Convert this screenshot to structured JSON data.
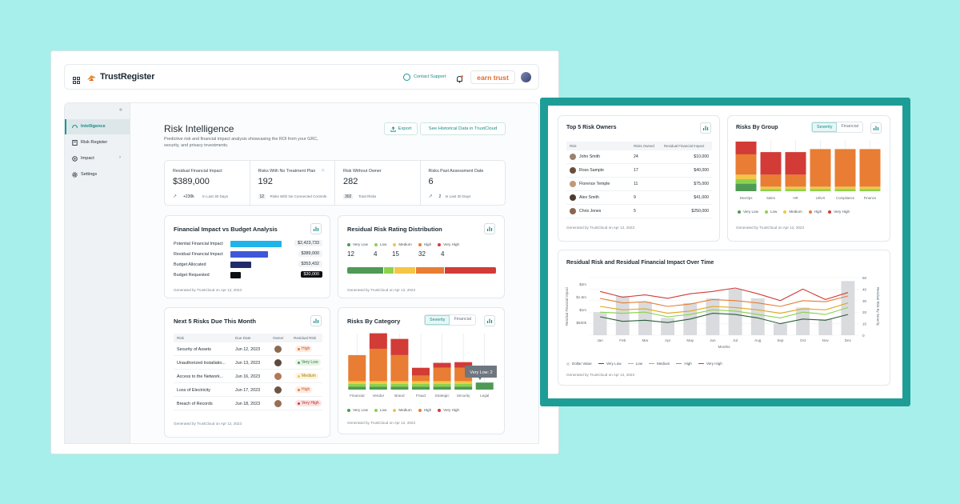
{
  "colors": {
    "teal": "#179a94",
    "veryLow": "#4f9a55",
    "low": "#8bd24f",
    "medium": "#f4c645",
    "high": "#e87d33",
    "veryHigh": "#d23b36"
  },
  "app": {
    "logo": "TrustRegister",
    "contact_support": "Contact Support",
    "earn_trust": "earn trust",
    "collapse": "«"
  },
  "sidebar": {
    "items": [
      {
        "label": "Intelligence",
        "icon": "gauge-icon"
      },
      {
        "label": "Risk Register",
        "icon": "register-icon"
      },
      {
        "label": "Impact",
        "icon": "impact-icon"
      },
      {
        "label": "Settings",
        "icon": "gear-icon"
      }
    ]
  },
  "page": {
    "title": "Risk Intelligence",
    "subtitle_l1": "Predictive risk and financial impact analysis showcasing the ROI from your GRC,",
    "subtitle_l2": "security, and privacy investments.",
    "export": "Export",
    "historical": "See Historical Data in TrustCloud"
  },
  "kpis": [
    {
      "label": "Residual Financial Impact",
      "value": "$389,000",
      "chip": "+230k",
      "note": "In Last 30 Days"
    },
    {
      "label": "Risks With No Treatment Plan",
      "value": "192",
      "chip": "12",
      "note": "Risks With No Connected Controls"
    },
    {
      "label": "Risk Without Owner",
      "value": "282",
      "chip": "302",
      "note": "Total Risks"
    },
    {
      "label": "Risks Past Assessment Date",
      "value": "6",
      "chip": "2",
      "note": "In Last 30 Days"
    }
  ],
  "generated": "Generated by TrustCloud on Apr 12, 2023",
  "fin_impact": {
    "title": "Financial Impact vs Budget Analysis",
    "rows": [
      {
        "label": "Potential Financial Impact",
        "value": "$2,423,733",
        "frac": 1.0,
        "color": "#1fb4ea"
      },
      {
        "label": "Residual Financial Impact",
        "value": "$389,000",
        "frac": 0.74,
        "color": "#3f57d8"
      },
      {
        "label": "Budget Allocated",
        "value": "$353,432",
        "frac": 0.4,
        "color": "#1f2b6b"
      },
      {
        "label": "Budget Requested",
        "value": "$30,000",
        "frac": 0.2,
        "color": "#0c0f14"
      }
    ]
  },
  "rating": {
    "title": "Residual Risk Rating Distribution",
    "labels": [
      "Very Low",
      "Low",
      "Medium",
      "High",
      "Very High"
    ],
    "values": [
      "12",
      "4",
      "15",
      "32",
      "4"
    ]
  },
  "next5": {
    "title": "Next 5 Risks Due This Month",
    "headers": [
      "Risk",
      "Due Date",
      "Owner",
      "Residual Risk"
    ],
    "rows": [
      {
        "risk": "Security of Assets",
        "due": "Jun 12, 2023",
        "level": "High"
      },
      {
        "risk": "Unauthorized Installatio...",
        "due": "Jun 13, 2023",
        "level": "Very Low"
      },
      {
        "risk": "Access to the Network...",
        "due": "Jun 16, 2023",
        "level": "Medium"
      },
      {
        "risk": "Loss of Electricity",
        "due": "Jun 17, 2023",
        "level": "High"
      },
      {
        "risk": "Breach of Records",
        "due": "Jun 18, 2023",
        "level": "Very High"
      }
    ]
  },
  "category": {
    "title": "Risks By Category",
    "tabs": [
      "Severity",
      "Financial"
    ],
    "tooltip": "Very Low: 2"
  },
  "owners": {
    "title": "Top 5 Risk Owners",
    "headers": [
      "Risk",
      "Risks Owned",
      "Residual Financial Impact"
    ],
    "rows": [
      {
        "name": "John Smith",
        "owned": "24",
        "impact": "$10,000"
      },
      {
        "name": "Ross Sample",
        "owned": "17",
        "impact": "$40,000"
      },
      {
        "name": "Florence Temple",
        "owned": "11",
        "impact": "$75,000"
      },
      {
        "name": "Alex Smith",
        "owned": "9",
        "impact": "$41,000"
      },
      {
        "name": "Chris Jones",
        "owned": "5",
        "impact": "$250,000"
      }
    ]
  },
  "group": {
    "title": "Risks By Group",
    "tabs": [
      "Severity",
      "Financial"
    ]
  },
  "legend_severity": [
    "Very Low",
    "Low",
    "Medium",
    "High",
    "Very High"
  ],
  "chart_data": [
    {
      "type": "bar",
      "title": "Risks By Category",
      "stacked": true,
      "categories": [
        "Financial",
        "Vendor",
        "Brand",
        "Fraud",
        "Strategic",
        "Security",
        "Legal"
      ],
      "series": [
        {
          "name": "Very Low",
          "values": [
            0.4,
            0.4,
            0.4,
            0.4,
            0.4,
            0.4,
            1
          ]
        },
        {
          "name": "Low",
          "values": [
            0.4,
            0.4,
            0.4,
            0.4,
            0.4,
            0.4,
            0
          ]
        },
        {
          "name": "Medium",
          "values": [
            0.4,
            0.4,
            0.4,
            0.4,
            0.4,
            0.4,
            0
          ]
        },
        {
          "name": "High",
          "values": [
            3.7,
            4.6,
            3.7,
            0.8,
            1.9,
            1.9,
            0
          ]
        },
        {
          "name": "Very High",
          "values": [
            0,
            2.2,
            2.3,
            1.1,
            0.7,
            0.8,
            0
          ]
        }
      ]
    },
    {
      "type": "bar",
      "title": "Risks By Group",
      "stacked": true,
      "categories": [
        "DevOps",
        "Sales",
        "HR",
        "UI/UX",
        "Compliance",
        "Finance"
      ],
      "series": [
        {
          "name": "Very Low",
          "values": [
            1.0,
            0,
            0,
            0,
            0,
            0
          ]
        },
        {
          "name": "Low",
          "values": [
            0.6,
            0.3,
            0.3,
            0.3,
            0.3,
            0.3
          ]
        },
        {
          "name": "Medium",
          "values": [
            0.6,
            0.3,
            0.3,
            0.3,
            0.3,
            0.3
          ]
        },
        {
          "name": "High",
          "values": [
            2.7,
            1.6,
            1.6,
            5.0,
            5.0,
            5.0
          ]
        },
        {
          "name": "Very High",
          "values": [
            1.7,
            3.0,
            3.0,
            0,
            0,
            0
          ]
        }
      ]
    },
    {
      "type": "line",
      "title": "Residual Risk and Residual Financial Impact Over Time",
      "xlabel": "Months",
      "ylabel": "Residual Financial Impact",
      "y2label": "Residual Risk By Severity",
      "x": [
        "Jan",
        "Feb",
        "Mar",
        "Apr",
        "May",
        "Jun",
        "Jul",
        "Aug",
        "Sep",
        "Oct",
        "Nov",
        "Dec"
      ],
      "yticks": [
        "$2m",
        "$1.5m",
        "$1m",
        "$500k"
      ],
      "y2ticks": [
        "50",
        "40",
        "30",
        "20",
        "10",
        "0"
      ],
      "y2lim": [
        0,
        50
      ],
      "bars": {
        "name": "Dollar Value",
        "values": [
          20,
          34,
          29,
          15,
          28,
          32,
          40,
          32,
          10,
          24,
          14,
          47
        ]
      },
      "series": [
        {
          "name": "Very Low",
          "values": [
            16,
            12,
            13,
            11,
            14,
            19,
            18,
            15,
            10,
            14,
            13,
            18
          ]
        },
        {
          "name": "Low",
          "values": [
            20,
            19,
            20,
            16,
            18,
            22,
            21,
            18,
            15,
            20,
            18,
            24
          ]
        },
        {
          "name": "Medium",
          "values": [
            25,
            22,
            23,
            19,
            21,
            25,
            24,
            22,
            19,
            23,
            22,
            28
          ]
        },
        {
          "name": "High",
          "values": [
            32,
            28,
            29,
            25,
            27,
            31,
            30,
            28,
            25,
            30,
            29,
            34
          ]
        },
        {
          "name": "Very High",
          "values": [
            38,
            33,
            35,
            32,
            36,
            38,
            41,
            36,
            30,
            40,
            31,
            37
          ]
        }
      ]
    }
  ],
  "line_legend": [
    "Dollar Value",
    "Very Low",
    "Low",
    "Medium",
    "High",
    "Very High"
  ]
}
